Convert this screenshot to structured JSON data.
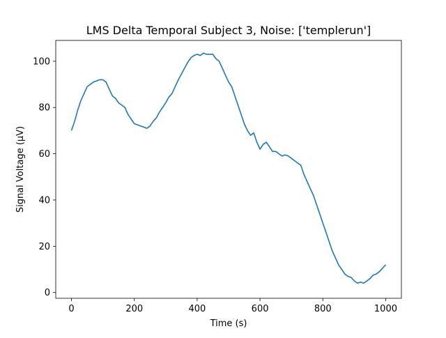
{
  "chart_data": {
    "type": "line",
    "title": "LMS Delta Temporal Subject 3, Noise: ['templerun']",
    "xlabel": "Time (s)",
    "ylabel": "Signal Voltage (μV)",
    "xlim": [
      -50,
      1050
    ],
    "ylim": [
      -2.5,
      109
    ],
    "xticks": [
      0,
      200,
      400,
      600,
      800,
      1000
    ],
    "yticks": [
      0,
      20,
      40,
      60,
      80,
      100
    ],
    "grid": false,
    "line_color": "#1f77b4",
    "series": [
      {
        "x": [
          0,
          10,
          20,
          30,
          40,
          50,
          60,
          70,
          80,
          90,
          100,
          110,
          120,
          130,
          140,
          150,
          160,
          170,
          180,
          190,
          200,
          210,
          220,
          230,
          240,
          250,
          260,
          270,
          280,
          290,
          300,
          310,
          320,
          330,
          340,
          350,
          360,
          370,
          380,
          390,
          400,
          410,
          420,
          430,
          440,
          450,
          460,
          470,
          480,
          490,
          500,
          510,
          520,
          530,
          540,
          550,
          560,
          570,
          580,
          590,
          600,
          610,
          620,
          630,
          640,
          650,
          660,
          670,
          680,
          690,
          700,
          710,
          720,
          730,
          740,
          750,
          760,
          770,
          780,
          790,
          800,
          810,
          820,
          830,
          840,
          850,
          860,
          870,
          880,
          890,
          900,
          910,
          920,
          930,
          940,
          950,
          960,
          970,
          980,
          990,
          1000
        ],
        "values": [
          70,
          74,
          79,
          83,
          86,
          89,
          90,
          91,
          91.5,
          92,
          92,
          91,
          88,
          85,
          84,
          82,
          81,
          80,
          77,
          75,
          73,
          72.5,
          72,
          71.5,
          71,
          72,
          74,
          75.5,
          78,
          80,
          82,
          84.5,
          86,
          89,
          92,
          94.5,
          97,
          99.5,
          101.5,
          102.5,
          103,
          102.5,
          103.5,
          103,
          103,
          103,
          101,
          100,
          97,
          94,
          91,
          89,
          85,
          81,
          77,
          73,
          70,
          68,
          69,
          65,
          62,
          64,
          65,
          63,
          61,
          61,
          60,
          59,
          59.5,
          59,
          58,
          57,
          56,
          55,
          51,
          48,
          45,
          42,
          38,
          34,
          30,
          26,
          22,
          18,
          15,
          12,
          10,
          8,
          7,
          6.5,
          5,
          4,
          4.5,
          4,
          5,
          6,
          7.5,
          8,
          9,
          10.5,
          12
        ]
      }
    ]
  }
}
